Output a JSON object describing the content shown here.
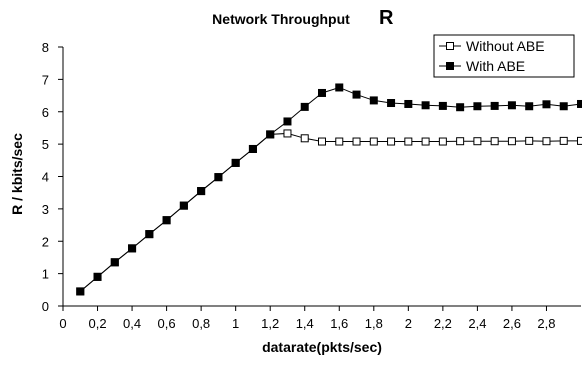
{
  "chart_data": {
    "type": "line",
    "title": "Network Throughput",
    "title_symbol": "R",
    "xlabel": "datarate(pkts/sec)",
    "ylabel": "R / kbits/sec",
    "xlim": [
      0,
      3.0
    ],
    "ylim": [
      0,
      8
    ],
    "x_ticks": [
      0,
      0.2,
      0.4,
      0.6,
      0.8,
      1,
      1.2,
      1.4,
      1.6,
      1.8,
      2,
      2.2,
      2.4,
      2.6,
      2.8
    ],
    "x_tick_labels": [
      "0",
      "0,2",
      "0,4",
      "0,6",
      "0,8",
      "1",
      "1,2",
      "1,4",
      "1,6",
      "1,8",
      "2",
      "2,2",
      "2,4",
      "2,6",
      "2,8"
    ],
    "y_ticks": [
      0,
      1,
      2,
      3,
      4,
      5,
      6,
      7,
      8
    ],
    "y_tick_labels": [
      "0",
      "1",
      "2",
      "3",
      "4",
      "5",
      "6",
      "7",
      "8"
    ],
    "grid": false,
    "legend": {
      "placement": "top-right"
    },
    "series": [
      {
        "name": "Without ABE",
        "marker": "hollow-square",
        "color": "#000000",
        "points": [
          [
            0.1,
            0.45
          ],
          [
            0.2,
            0.9
          ],
          [
            0.3,
            1.35
          ],
          [
            0.4,
            1.78
          ],
          [
            0.5,
            2.22
          ],
          [
            0.6,
            2.65
          ],
          [
            0.7,
            3.1
          ],
          [
            0.8,
            3.55
          ],
          [
            0.9,
            3.98
          ],
          [
            1.0,
            4.42
          ],
          [
            1.1,
            4.85
          ],
          [
            1.2,
            5.3
          ],
          [
            1.3,
            5.33
          ],
          [
            1.4,
            5.18
          ],
          [
            1.5,
            5.08
          ],
          [
            1.6,
            5.08
          ],
          [
            1.7,
            5.08
          ],
          [
            1.8,
            5.08
          ],
          [
            1.9,
            5.08
          ],
          [
            2.0,
            5.08
          ],
          [
            2.1,
            5.08
          ],
          [
            2.2,
            5.08
          ],
          [
            2.3,
            5.09
          ],
          [
            2.4,
            5.09
          ],
          [
            2.5,
            5.09
          ],
          [
            2.6,
            5.09
          ],
          [
            2.7,
            5.1
          ],
          [
            2.8,
            5.09
          ],
          [
            2.9,
            5.1
          ],
          [
            3.0,
            5.1
          ]
        ]
      },
      {
        "name": "With ABE",
        "marker": "filled-square",
        "color": "#000000",
        "points": [
          [
            0.1,
            0.45
          ],
          [
            0.2,
            0.9
          ],
          [
            0.3,
            1.35
          ],
          [
            0.4,
            1.78
          ],
          [
            0.5,
            2.22
          ],
          [
            0.6,
            2.65
          ],
          [
            0.7,
            3.1
          ],
          [
            0.8,
            3.55
          ],
          [
            0.9,
            3.98
          ],
          [
            1.0,
            4.42
          ],
          [
            1.1,
            4.85
          ],
          [
            1.2,
            5.3
          ],
          [
            1.3,
            5.7
          ],
          [
            1.4,
            6.15
          ],
          [
            1.5,
            6.58
          ],
          [
            1.6,
            6.75
          ],
          [
            1.7,
            6.53
          ],
          [
            1.8,
            6.35
          ],
          [
            1.9,
            6.27
          ],
          [
            2.0,
            6.24
          ],
          [
            2.1,
            6.2
          ],
          [
            2.2,
            6.18
          ],
          [
            2.3,
            6.14
          ],
          [
            2.4,
            6.17
          ],
          [
            2.5,
            6.18
          ],
          [
            2.6,
            6.2
          ],
          [
            2.7,
            6.17
          ],
          [
            2.8,
            6.23
          ],
          [
            2.9,
            6.17
          ],
          [
            3.0,
            6.24
          ]
        ]
      }
    ]
  }
}
